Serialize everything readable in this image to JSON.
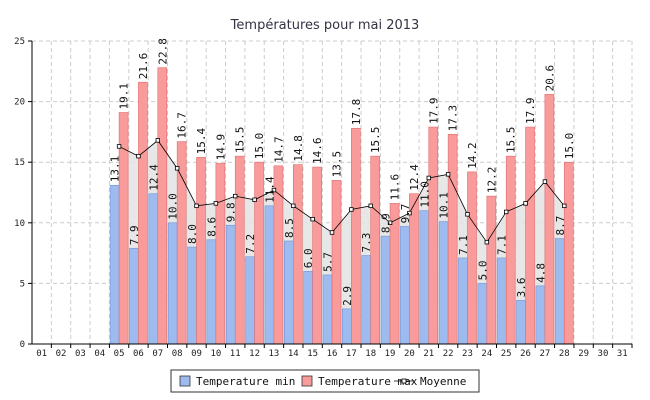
{
  "chart_data": {
    "type": "bar",
    "title": "Températures pour mai 2013",
    "categories": [
      "01",
      "02",
      "03",
      "04",
      "05",
      "06",
      "07",
      "08",
      "09",
      "10",
      "11",
      "12",
      "13",
      "14",
      "15",
      "16",
      "17",
      "18",
      "19",
      "20",
      "21",
      "22",
      "23",
      "24",
      "25",
      "26",
      "27",
      "28",
      "29",
      "30",
      "31"
    ],
    "ylim": [
      0,
      25
    ],
    "yticks": [
      0,
      5,
      10,
      15,
      20,
      25
    ],
    "grid": true,
    "legend_position": "bottom",
    "series": [
      {
        "name": "Temperature min",
        "type": "bar",
        "color": "#9dbbee",
        "edge_color": "#6f96d8",
        "values": [
          null,
          null,
          null,
          null,
          13.1,
          7.9,
          12.4,
          10.0,
          8.0,
          8.6,
          9.8,
          7.2,
          11.4,
          8.5,
          6.0,
          5.7,
          2.9,
          7.3,
          8.9,
          9.7,
          11.0,
          10.1,
          7.1,
          5.0,
          7.1,
          3.6,
          4.8,
          8.7,
          null,
          null,
          null
        ],
        "labels": [
          "",
          "",
          "",
          "",
          "13.1",
          "7.9",
          "12.4",
          "10.0",
          "8.0",
          "8.6",
          "9.8",
          "7.2",
          "11.4",
          "8.5",
          "6.0",
          "5.7",
          "2.9",
          "7.3",
          "8.9",
          "9.7",
          "11.0",
          "10.1",
          "7.1",
          "5.0",
          "7.1",
          "3.6",
          "4.8",
          "8.7",
          "",
          "",
          ""
        ]
      },
      {
        "name": "Temperature max",
        "type": "bar",
        "color": "#f99b9b",
        "edge_color": "#e06c6c",
        "values": [
          null,
          null,
          null,
          null,
          19.1,
          21.6,
          22.8,
          16.7,
          15.4,
          14.9,
          15.5,
          15.0,
          14.7,
          14.8,
          14.6,
          13.5,
          17.8,
          15.5,
          11.6,
          12.4,
          17.9,
          17.3,
          14.2,
          12.2,
          15.5,
          17.9,
          20.6,
          15.0,
          null,
          null,
          null
        ],
        "labels": [
          "",
          "",
          "",
          "",
          "19.1",
          "21.6",
          "22.8",
          "16.7",
          "15.4",
          "14.9",
          "15.5",
          "15.0",
          "14.7",
          "14.8",
          "14.6",
          "13.5",
          "17.8",
          "15.5",
          "11.6",
          "12.4",
          "17.9",
          "17.3",
          "14.2",
          "12.2",
          "15.5",
          "17.9",
          "20.6",
          "15.0",
          "",
          "",
          ""
        ]
      },
      {
        "name": "Moyenne",
        "type": "line",
        "color": "#000000",
        "fill_color": "#e3e3e3",
        "values": [
          null,
          null,
          null,
          null,
          16.3,
          15.5,
          16.8,
          14.5,
          11.4,
          11.6,
          12.2,
          11.9,
          12.7,
          11.4,
          10.3,
          9.2,
          11.1,
          11.4,
          10.0,
          10.8,
          13.7,
          14.0,
          10.7,
          8.4,
          10.9,
          11.6,
          13.4,
          11.4,
          null,
          null,
          null
        ]
      }
    ]
  }
}
